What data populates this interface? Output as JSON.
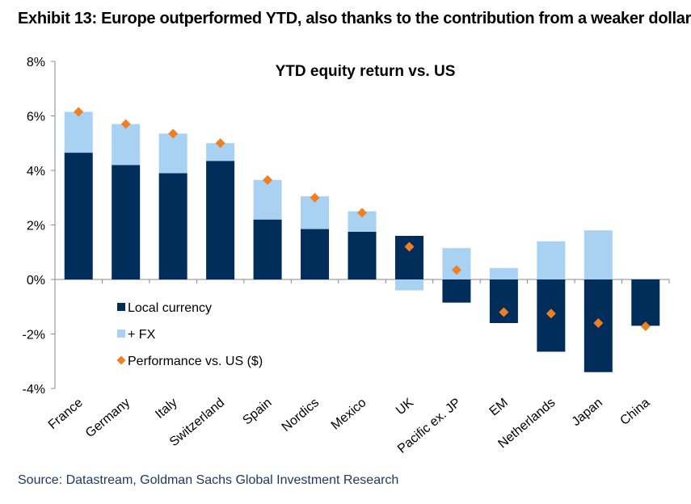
{
  "header": {
    "title": "Exhibit 13: Europe outperformed YTD, also thanks to the contribution from a weaker dollar"
  },
  "footer": {
    "source": "Source: Datastream, Goldman Sachs Global Investment Research"
  },
  "colors": {
    "local": "#002d5a",
    "fx": "#a9d1f2",
    "performance": "#f07f23",
    "axis": "#888888"
  },
  "chart_data": {
    "type": "bar",
    "title": "YTD equity return vs. US",
    "xlabel": "",
    "ylabel": "",
    "ylim": [
      -4,
      8
    ],
    "yticks": [
      -4,
      -2,
      0,
      2,
      4,
      6,
      8
    ],
    "ytick_labels": [
      "-4%",
      "-2%",
      "0%",
      "2%",
      "4%",
      "6%",
      "8%"
    ],
    "grid": false,
    "legend_position": "lower-left",
    "stacked": true,
    "categories": [
      "France",
      "Germany",
      "Italy",
      "Switzerland",
      "Spain",
      "Nordics",
      "Mexico",
      "UK",
      "Pacific ex. JP",
      "EM",
      "Netherlands",
      "Japan",
      "China"
    ],
    "series": [
      {
        "name": "Local currency",
        "kind": "bar",
        "color": "#002d5a",
        "values": [
          4.65,
          4.2,
          3.9,
          4.35,
          2.2,
          1.85,
          1.75,
          1.6,
          -0.85,
          -1.6,
          -2.65,
          -3.4,
          -1.7
        ]
      },
      {
        "name": "+ FX",
        "kind": "bar",
        "color": "#a9d1f2",
        "values": [
          1.5,
          1.5,
          1.45,
          0.65,
          1.45,
          1.2,
          0.75,
          -0.4,
          1.15,
          0.42,
          1.4,
          1.8,
          0.0
        ]
      },
      {
        "name": "Performance vs. US ($)",
        "kind": "marker",
        "color": "#f07f23",
        "values": [
          6.15,
          5.7,
          5.35,
          5.0,
          3.65,
          3.0,
          2.45,
          1.2,
          0.35,
          -1.2,
          -1.25,
          -1.6,
          -1.72
        ]
      }
    ]
  }
}
